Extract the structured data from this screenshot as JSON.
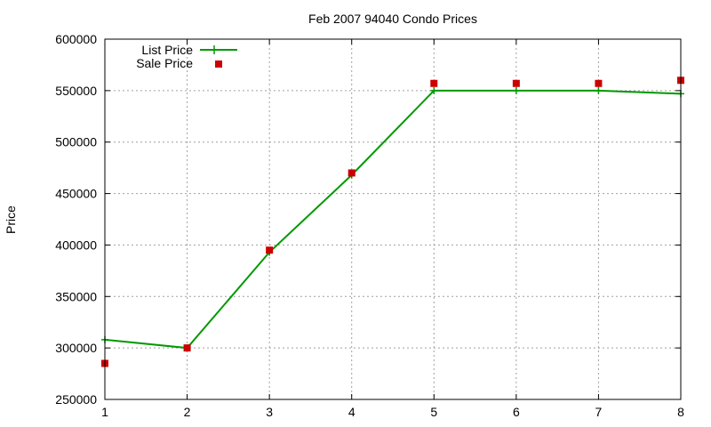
{
  "chart_data": {
    "type": "line",
    "title": "Feb 2007 94040 Condo Prices",
    "xlabel": "",
    "ylabel": "Price",
    "x": [
      1,
      2,
      3,
      4,
      5,
      6,
      7,
      8
    ],
    "xlim": [
      1,
      8
    ],
    "ylim": [
      250000,
      600000
    ],
    "xticks": [
      "1",
      "2",
      "3",
      "4",
      "5",
      "6",
      "7",
      "8"
    ],
    "yticks": [
      "250000",
      "300000",
      "350000",
      "400000",
      "450000",
      "500000",
      "550000",
      "600000"
    ],
    "grid": true,
    "legend_position": "top-left",
    "series": [
      {
        "name": "List Price",
        "style": "line-with-plus-markers",
        "color": "#009900",
        "values": [
          308000,
          300000,
          393000,
          468000,
          550000,
          550000,
          550000,
          547000
        ]
      },
      {
        "name": "Sale Price",
        "style": "square-markers",
        "color": "#cc0000",
        "values": [
          285000,
          300000,
          395000,
          470000,
          557000,
          557000,
          557000,
          560000
        ]
      }
    ]
  }
}
